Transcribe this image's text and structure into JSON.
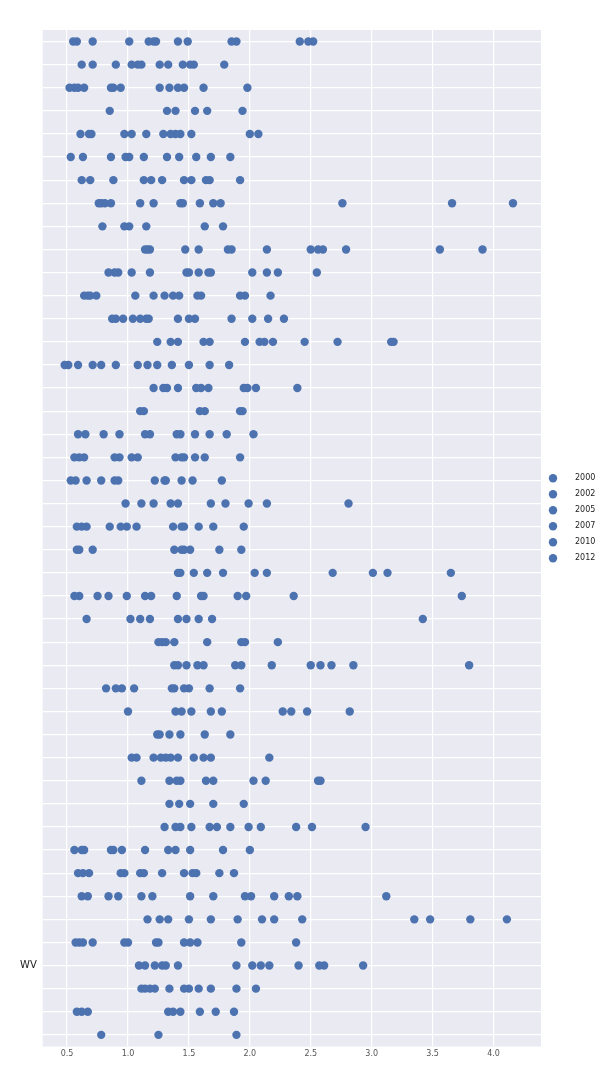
{
  "chart_data": {
    "type": "bubble",
    "orientation": "horizontal",
    "categories": [
      null,
      null,
      null,
      null,
      null,
      null,
      null,
      null,
      null,
      null,
      null,
      null,
      null,
      null,
      null,
      null,
      null,
      null,
      null,
      null,
      null,
      null,
      null,
      null,
      null,
      null,
      null,
      null,
      null,
      null,
      null,
      null,
      null,
      null,
      null,
      null,
      null,
      null,
      null,
      null,
      "WV",
      null,
      null,
      null
    ],
    "series": [
      {
        "color": "#4c72b0",
        "values": [
          0.55,
          0.62,
          0.52,
          0.85,
          0.61,
          0.53,
          0.62,
          0.76,
          0.79,
          1.14,
          0.84,
          0.64,
          0.87,
          1.24,
          0.48,
          1.21,
          1.1,
          0.59,
          0.56,
          0.53,
          0.98,
          0.58,
          0.58,
          1.41,
          0.56,
          0.66,
          1.25,
          1.38,
          0.82,
          1.0,
          1.24,
          1.03,
          1.11,
          1.34,
          1.3,
          0.56,
          0.59,
          0.62,
          1.16,
          0.57,
          1.09,
          1.11,
          0.58,
          0.78
        ],
        "sizes": [
          2000,
          2000,
          2000,
          2000,
          2000,
          2000,
          2000,
          2000,
          2000,
          2000,
          2000,
          2000,
          2000,
          2000,
          2000,
          2000,
          2000,
          2000,
          2000,
          2000,
          2000,
          2000,
          2000,
          2000,
          2000,
          2000,
          2000,
          2000,
          2000,
          2000,
          2000,
          2000,
          2000,
          2000,
          2000,
          2000,
          2000,
          2000,
          2000,
          2000,
          2000,
          2000,
          2000,
          2000
        ]
      },
      {
        "color": "#4c72b0",
        "values": [
          0.58,
          0.71,
          0.56,
          1.32,
          0.68,
          0.63,
          0.69,
          0.78,
          0.97,
          1.16,
          0.89,
          0.67,
          0.9,
          1.35,
          0.51,
          1.29,
          1.13,
          0.65,
          0.6,
          0.57,
          1.11,
          0.62,
          0.6,
          1.43,
          0.6,
          1.02,
          1.28,
          1.41,
          0.9,
          1.39,
          1.26,
          1.07,
          1.34,
          1.42,
          1.39,
          0.62,
          0.63,
          0.67,
          1.26,
          0.6,
          1.14,
          1.14,
          0.62,
          1.25
        ],
        "sizes": [
          2001,
          2001,
          2001,
          2001,
          2001,
          2001,
          2001,
          2001,
          2001,
          2001,
          2001,
          2001,
          2001,
          2001,
          2001,
          2001,
          2001,
          2001,
          2001,
          2001,
          2001,
          2001,
          2001,
          2001,
          2001,
          2001,
          2001,
          2001,
          2001,
          2001,
          2001,
          2001,
          2001,
          2001,
          2001,
          2001,
          2001,
          2001,
          2001,
          2001,
          2001,
          2001,
          2001,
          2001
        ]
      },
      {
        "color": "#4c72b0",
        "values": [
          0.71,
          0.9,
          0.59,
          1.39,
          0.7,
          0.86,
          0.88,
          0.81,
          1.01,
          1.18,
          0.92,
          0.69,
          0.96,
          1.41,
          0.59,
          1.32,
          1.59,
          0.8,
          0.64,
          0.66,
          1.21,
          0.66,
          0.71,
          1.54,
          0.75,
          1.1,
          1.31,
          1.48,
          0.95,
          1.44,
          1.34,
          1.21,
          1.4,
          1.51,
          1.43,
          0.64,
          0.68,
          0.84,
          1.33,
          0.63,
          1.22,
          1.18,
          0.67,
          1.89
        ],
        "sizes": [
          2002,
          2002,
          2002,
          2002,
          2002,
          2002,
          2002,
          2002,
          2002,
          2002,
          2002,
          2002,
          2002,
          2002,
          2002,
          2002,
          2002,
          2002,
          2002,
          2002,
          2002,
          2002,
          2002,
          2002,
          2002,
          2002,
          2002,
          2002,
          2002,
          2002,
          2002,
          2002,
          2002,
          2002,
          2002,
          2002,
          2002,
          2002,
          2002,
          2002,
          2002,
          2002,
          2002,
          2002
        ]
      },
      {
        "color": "#4c72b0",
        "values": [
          1.01,
          1.03,
          0.64,
          1.55,
          0.97,
          0.98,
          1.13,
          0.86,
          1.15,
          1.47,
          1.03,
          0.74,
          1.04,
          1.62,
          0.71,
          1.41,
          1.63,
          0.93,
          0.89,
          0.78,
          1.35,
          0.85,
          1.38,
          1.65,
          0.84,
          1.18,
          1.38,
          1.57,
          1.05,
          1.52,
          1.43,
          1.27,
          1.43,
          1.7,
          1.52,
          0.86,
          0.94,
          0.92,
          1.5,
          0.71,
          1.28,
          1.22,
          1.33,
          null
        ],
        "sizes": [
          2003,
          2003,
          2003,
          2003,
          2003,
          2003,
          2003,
          2003,
          2003,
          2003,
          2003,
          2003,
          2003,
          2003,
          2003,
          2003,
          2003,
          2003,
          2003,
          2003,
          2003,
          2003,
          2003,
          2003,
          2003,
          2003,
          2003,
          2003,
          2003,
          2003,
          2003,
          2003,
          2003,
          2003,
          2003,
          2003,
          2003,
          2003,
          2003,
          2003,
          2003,
          2003,
          2003,
          null
        ]
      },
      {
        "color": "#4c72b0",
        "values": [
          1.17,
          1.08,
          0.86,
          1.65,
          1.03,
          1.01,
          1.19,
          1.1,
          1.63,
          1.58,
          1.18,
          1.06,
          1.1,
          1.67,
          0.78,
          1.56,
          1.92,
          1.14,
          0.93,
          0.89,
          1.41,
          0.94,
          1.44,
          1.78,
          0.99,
          1.41,
          1.65,
          1.62,
          1.36,
          1.68,
          1.63,
          1.31,
          1.64,
          1.95,
          1.67,
          0.88,
          0.97,
          1.11,
          1.68,
          0.97,
          1.31,
          1.34,
          1.37,
          null
        ],
        "sizes": [
          2004,
          2004,
          2004,
          2004,
          2004,
          2004,
          2004,
          2004,
          2004,
          2004,
          2004,
          2004,
          2004,
          2004,
          2004,
          2004,
          2004,
          2004,
          2004,
          2004,
          2004,
          2004,
          2004,
          2004,
          2004,
          2004,
          2004,
          2004,
          2004,
          2004,
          2004,
          2004,
          2004,
          2004,
          2004,
          2004,
          2004,
          2004,
          2004,
          2004,
          2004,
          2004,
          2004,
          null
        ]
      },
      {
        "color": "#4c72b0",
        "values": [
          1.21,
          1.11,
          0.88,
          1.94,
          1.15,
          1.13,
          1.28,
          1.21,
          1.78,
          1.82,
          1.48,
          1.21,
          1.15,
          1.96,
          0.9,
          1.6,
          1.94,
          1.18,
          1.03,
          0.92,
          1.68,
          0.99,
          1.46,
          2.04,
          1.14,
          1.48,
          1.93,
          1.88,
          1.38,
          1.77,
          1.84,
          1.35,
          1.7,
          null,
          1.73,
          0.95,
          1.1,
          1.2,
          1.9,
          1.0,
          1.41,
          1.46,
          1.43,
          null
        ],
        "sizes": [
          2005,
          2005,
          2005,
          2005,
          2005,
          2005,
          2005,
          2005,
          2005,
          2005,
          2005,
          2005,
          2005,
          2005,
          2005,
          2005,
          2005,
          2005,
          2005,
          2005,
          2005,
          2005,
          2005,
          2005,
          2005,
          2005,
          2005,
          2005,
          2005,
          2005,
          2005,
          2005,
          2005,
          null,
          2005,
          2005,
          2005,
          2005,
          2005,
          2005,
          2005,
          2005,
          2005,
          null
        ]
      },
      {
        "color": "#4c72b0",
        "values": [
          1.23,
          1.26,
          0.94,
          null,
          1.29,
          1.32,
          1.46,
          1.43,
          null,
          1.85,
          1.5,
          1.3,
          1.17,
          2.08,
          1.08,
          1.66,
          null,
          1.4,
          1.08,
          1.22,
          1.8,
          1.07,
          1.51,
          2.14,
          1.19,
          1.58,
          1.96,
          1.93,
          1.46,
          2.27,
          null,
          1.41,
          2.03,
          null,
          1.84,
          1.14,
          1.13,
          1.51,
          2.1,
          1.23,
          1.89,
          1.5,
          1.59,
          null
        ],
        "sizes": [
          2006,
          2006,
          2006,
          null,
          2006,
          2006,
          2006,
          2006,
          null,
          2006,
          2006,
          2006,
          2006,
          2006,
          2006,
          2006,
          null,
          2006,
          2006,
          2006,
          2006,
          2006,
          2006,
          2006,
          2006,
          2006,
          2006,
          2006,
          2006,
          2006,
          null,
          2006,
          2006,
          null,
          2006,
          2006,
          2006,
          2006,
          2006,
          2006,
          2006,
          2006,
          2006,
          null
        ]
      },
      {
        "color": "#4c72b0",
        "values": [
          1.41,
          1.33,
          1.26,
          null,
          1.35,
          1.42,
          1.52,
          1.45,
          null,
          2.14,
          1.58,
          1.37,
          1.41,
          2.12,
          1.16,
          1.95,
          null,
          1.43,
          1.39,
          1.3,
          1.99,
          1.37,
          1.75,
          2.68,
          1.4,
          1.69,
          2.23,
          2.18,
          1.5,
          2.34,
          null,
          1.54,
          2.13,
          null,
          1.99,
          1.33,
          1.28,
          1.7,
          2.2,
          1.25,
          2.02,
          1.58,
          1.72,
          null
        ],
        "sizes": [
          2007,
          2007,
          2007,
          null,
          2007,
          2007,
          2007,
          2007,
          null,
          2007,
          2007,
          2007,
          2007,
          2007,
          2007,
          2007,
          null,
          2007,
          2007,
          2007,
          2007,
          2007,
          2007,
          2007,
          2007,
          2007,
          2007,
          2007,
          2007,
          2007,
          null,
          2007,
          2007,
          null,
          2007,
          2007,
          2007,
          2007,
          2007,
          2007,
          2007,
          2007,
          2007,
          null
        ]
      },
      {
        "color": "#4c72b0",
        "values": [
          1.49,
          1.45,
          1.34,
          null,
          1.39,
          1.56,
          1.64,
          1.59,
          null,
          2.5,
          1.66,
          1.42,
          1.5,
          2.19,
          1.24,
          1.98,
          null,
          1.55,
          1.44,
          1.31,
          2.14,
          1.44,
          1.93,
          3.01,
          1.6,
          3.42,
          null,
          2.5,
          1.67,
          2.47,
          null,
          1.62,
          2.56,
          null,
          2.09,
          1.39,
          1.46,
          1.96,
          2.43,
          1.46,
          2.09,
          1.68,
          1.87,
          null
        ],
        "sizes": [
          2008,
          2008,
          2008,
          null,
          2008,
          2008,
          2008,
          2008,
          null,
          2008,
          2008,
          2008,
          2008,
          2008,
          2008,
          2008,
          null,
          2008,
          2008,
          2008,
          2008,
          2008,
          2008,
          2008,
          2008,
          2008,
          null,
          2008,
          2008,
          2008,
          null,
          2008,
          2008,
          null,
          2008,
          2008,
          2008,
          2008,
          2008,
          2008,
          2008,
          2008,
          2008,
          null
        ]
      },
      {
        "color": "#4c72b0",
        "values": [
          1.85,
          1.51,
          1.41,
          null,
          1.43,
          1.68,
          1.67,
          1.7,
          null,
          2.56,
          1.68,
          1.57,
          1.55,
          2.45,
          1.36,
          2.05,
          null,
          1.67,
          1.46,
          1.44,
          2.81,
          1.46,
          null,
          3.13,
          1.62,
          null,
          null,
          2.58,
          1.92,
          2.82,
          null,
          1.68,
          2.58,
          null,
          2.38,
          1.51,
          1.53,
          2.01,
          3.35,
          1.51,
          2.16,
          1.89,
          null,
          null
        ],
        "sizes": [
          2009,
          2009,
          2009,
          null,
          2009,
          2009,
          2009,
          2009,
          null,
          2009,
          2009,
          2009,
          2009,
          2009,
          2009,
          2009,
          null,
          2009,
          2009,
          2009,
          2009,
          2009,
          null,
          2009,
          2009,
          null,
          null,
          2009,
          2009,
          2009,
          null,
          2009,
          2009,
          null,
          2009,
          2009,
          2009,
          2009,
          2009,
          2009,
          2009,
          2009,
          null,
          null
        ]
      },
      {
        "color": "#4c72b0",
        "values": [
          1.89,
          1.54,
          1.46,
          null,
          1.52,
          1.84,
          1.92,
          1.76,
          null,
          2.6,
          2.02,
          1.6,
          1.85,
          2.72,
          1.5,
          2.39,
          null,
          1.81,
          1.55,
          1.53,
          null,
          1.58,
          null,
          3.65,
          1.9,
          null,
          null,
          2.67,
          null,
          null,
          null,
          2.16,
          null,
          null,
          2.51,
          1.78,
          1.56,
          2.2,
          3.48,
          1.57,
          2.4,
          2.05,
          null,
          null
        ],
        "sizes": [
          2010,
          2010,
          2010,
          null,
          2010,
          2010,
          2010,
          2010,
          null,
          2010,
          2010,
          2010,
          2010,
          2010,
          2010,
          2010,
          null,
          2010,
          2010,
          2010,
          null,
          2010,
          null,
          2010,
          2010,
          null,
          null,
          2010,
          null,
          null,
          null,
          2010,
          null,
          null,
          2010,
          2010,
          2010,
          2010,
          2010,
          2010,
          2010,
          2010,
          null,
          null
        ]
      },
      {
        "color": "#4c72b0",
        "values": [
          2.41,
          1.79,
          1.62,
          null,
          2.0,
          null,
          null,
          2.76,
          null,
          2.79,
          2.14,
          1.92,
          2.02,
          3.16,
          1.67,
          null,
          null,
          2.03,
          1.63,
          1.77,
          null,
          1.7,
          null,
          null,
          1.97,
          null,
          null,
          2.85,
          null,
          null,
          null,
          null,
          null,
          null,
          2.95,
          2.0,
          1.75,
          2.32,
          3.81,
          1.93,
          2.57,
          null,
          null,
          null
        ],
        "sizes": [
          2011,
          2011,
          2011,
          null,
          2011,
          null,
          null,
          2011,
          null,
          2011,
          2011,
          2011,
          2011,
          2011,
          2011,
          null,
          null,
          2011,
          2011,
          2011,
          null,
          2011,
          null,
          null,
          2011,
          null,
          null,
          2011,
          null,
          null,
          null,
          null,
          null,
          null,
          2011,
          2011,
          2011,
          2011,
          2011,
          2011,
          2011,
          null,
          null,
          null
        ]
      },
      {
        "color": "#4c72b0",
        "values": [
          2.48,
          null,
          1.98,
          null,
          2.07,
          null,
          null,
          3.66,
          null,
          3.56,
          2.23,
          1.96,
          2.15,
          3.18,
          1.83,
          null,
          null,
          null,
          1.92,
          null,
          null,
          1.95,
          null,
          null,
          2.36,
          null,
          null,
          3.8,
          null,
          null,
          null,
          null,
          null,
          null,
          null,
          null,
          1.87,
          2.39,
          4.11,
          2.38,
          2.61,
          null,
          null,
          null
        ],
        "sizes": [
          2012,
          null,
          2012,
          null,
          2012,
          null,
          null,
          2012,
          null,
          2012,
          2012,
          2012,
          2012,
          2012,
          2012,
          null,
          null,
          null,
          2012,
          null,
          null,
          2012,
          null,
          null,
          2012,
          null,
          null,
          2012,
          null,
          null,
          null,
          null,
          null,
          null,
          null,
          null,
          2012,
          2012,
          2012,
          2012,
          2012,
          null,
          null,
          null
        ]
      },
      {
        "color": "#4c72b0",
        "values": [
          2.52,
          null,
          null,
          null,
          null,
          null,
          null,
          4.16,
          null,
          3.91,
          2.55,
          2.17,
          2.28,
          null,
          null,
          null,
          null,
          null,
          null,
          null,
          null,
          null,
          null,
          null,
          3.74,
          null,
          null,
          null,
          null,
          null,
          null,
          null,
          null,
          null,
          null,
          null,
          null,
          3.12,
          null,
          null,
          2.93,
          null,
          null,
          null
        ],
        "sizes": [
          2013,
          null,
          null,
          null,
          null,
          null,
          null,
          2013,
          null,
          2013,
          2013,
          2013,
          2013,
          null,
          null,
          null,
          null,
          null,
          null,
          null,
          null,
          null,
          null,
          null,
          2013,
          null,
          null,
          null,
          null,
          null,
          null,
          null,
          null,
          null,
          null,
          null,
          null,
          2013,
          null,
          null,
          2013,
          null,
          null,
          null
        ]
      }
    ],
    "size_legend": [
      2000,
      2002,
      2005,
      2007,
      2010,
      2012
    ],
    "xlim": [
      0.3,
      4.39
    ],
    "xticks": [
      {
        "value": 0.5,
        "label": "0.5"
      },
      {
        "value": 1,
        "label": "1.0"
      },
      {
        "value": 1.5,
        "label": "1.5"
      },
      {
        "value": 2,
        "label": "2.0"
      },
      {
        "value": 2.5,
        "label": "2.5"
      },
      {
        "value": 3,
        "label": "3.0"
      },
      {
        "value": 3.5,
        "label": "3.5"
      },
      {
        "value": 4,
        "label": "4.0"
      }
    ],
    "grid": true
  }
}
